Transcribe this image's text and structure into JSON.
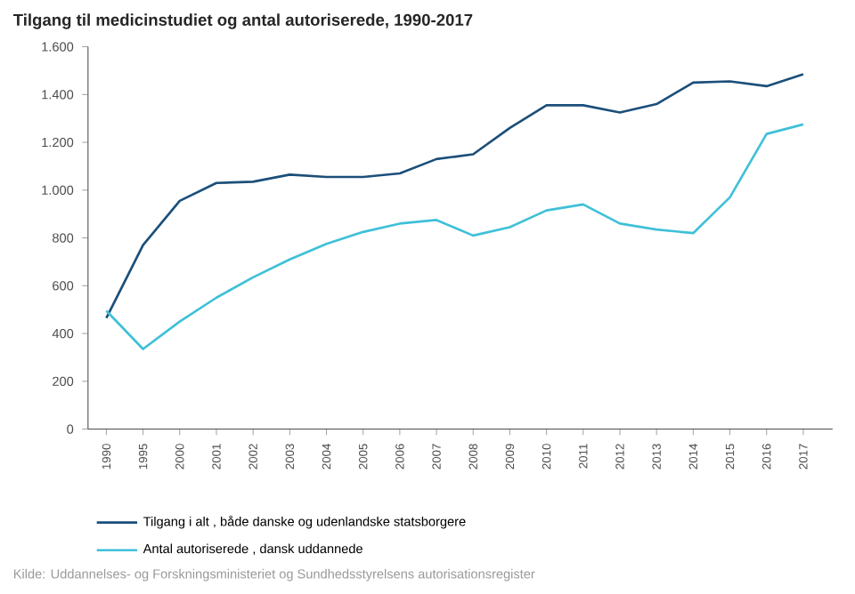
{
  "chart_data": {
    "type": "line",
    "title": "Tilgang til medicinstudiet og antal autoriserede, 1990-2017",
    "categories": [
      "1990",
      "1995",
      "2000",
      "2001",
      "2002",
      "2003",
      "2004",
      "2005",
      "2006",
      "2007",
      "2008",
      "2009",
      "2010",
      "2011",
      "2012",
      "2013",
      "2014",
      "2015",
      "2016",
      "2017"
    ],
    "series": [
      {
        "name": "Tilgang i alt , både danske og udenlandske statsborgere",
        "color": "#1b4f7a",
        "values": [
          465,
          770,
          955,
          1030,
          1035,
          1065,
          1055,
          1055,
          1070,
          1130,
          1150,
          1260,
          1355,
          1355,
          1325,
          1360,
          1450,
          1455,
          1435,
          1485
        ]
      },
      {
        "name": "Antal autoriserede , dansk uddannede",
        "color": "#3fc0d8",
        "values": [
          495,
          335,
          450,
          550,
          635,
          710,
          775,
          825,
          860,
          875,
          810,
          845,
          915,
          940,
          860,
          835,
          820,
          970,
          1235,
          1275
        ]
      }
    ],
    "ylim": [
      0,
      1600
    ],
    "yticks": [
      0,
      200,
      400,
      600,
      800,
      {
        "value": 1000,
        "label": "1.000"
      },
      {
        "value": 1200,
        "label": "1.200"
      },
      {
        "value": 1400,
        "label": "1.400"
      },
      {
        "value": 1600,
        "label": "1.600"
      }
    ],
    "legend": "bottom left",
    "grid": false,
    "annotations": [
      "Kilde: Uddannelses- og Forskningsministeriet og Sundhedsstyrelsens autorisationsregister"
    ]
  }
}
